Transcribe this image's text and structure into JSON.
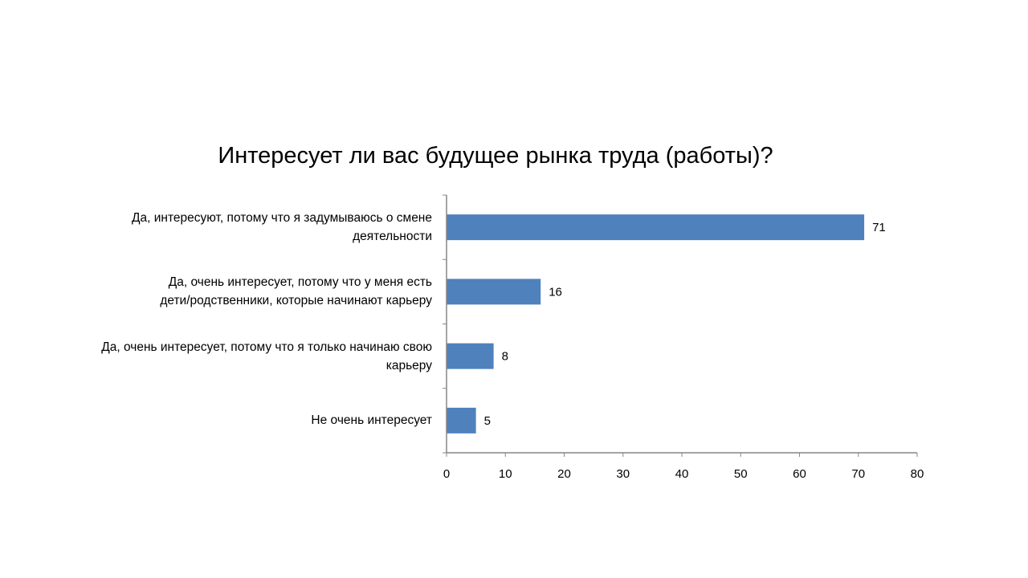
{
  "chart_data": {
    "type": "bar",
    "orientation": "horizontal",
    "title": "Интересует ли вас будущее рынка труда (работы)?",
    "categories": [
      [
        "Да, интересуют, потому что я задумываюсь о смене",
        "деятельности"
      ],
      [
        "Да, очень интересует, потому что у меня есть",
        "дети/родственники, которые начинают карьеру"
      ],
      [
        "Да, очень интересует, потому что я только начинаю свою",
        "карьеру"
      ],
      [
        "Не очень интересует"
      ]
    ],
    "values": [
      71,
      16,
      8,
      5
    ],
    "data_labels": [
      "71",
      "16",
      "8",
      "5"
    ],
    "xlim": [
      0,
      80
    ],
    "x_ticks": [
      0,
      10,
      20,
      30,
      40,
      50,
      60,
      70,
      80
    ],
    "grid": false,
    "legend": "none",
    "bar_color": "#4F81BD",
    "axis_color": "#868686"
  }
}
